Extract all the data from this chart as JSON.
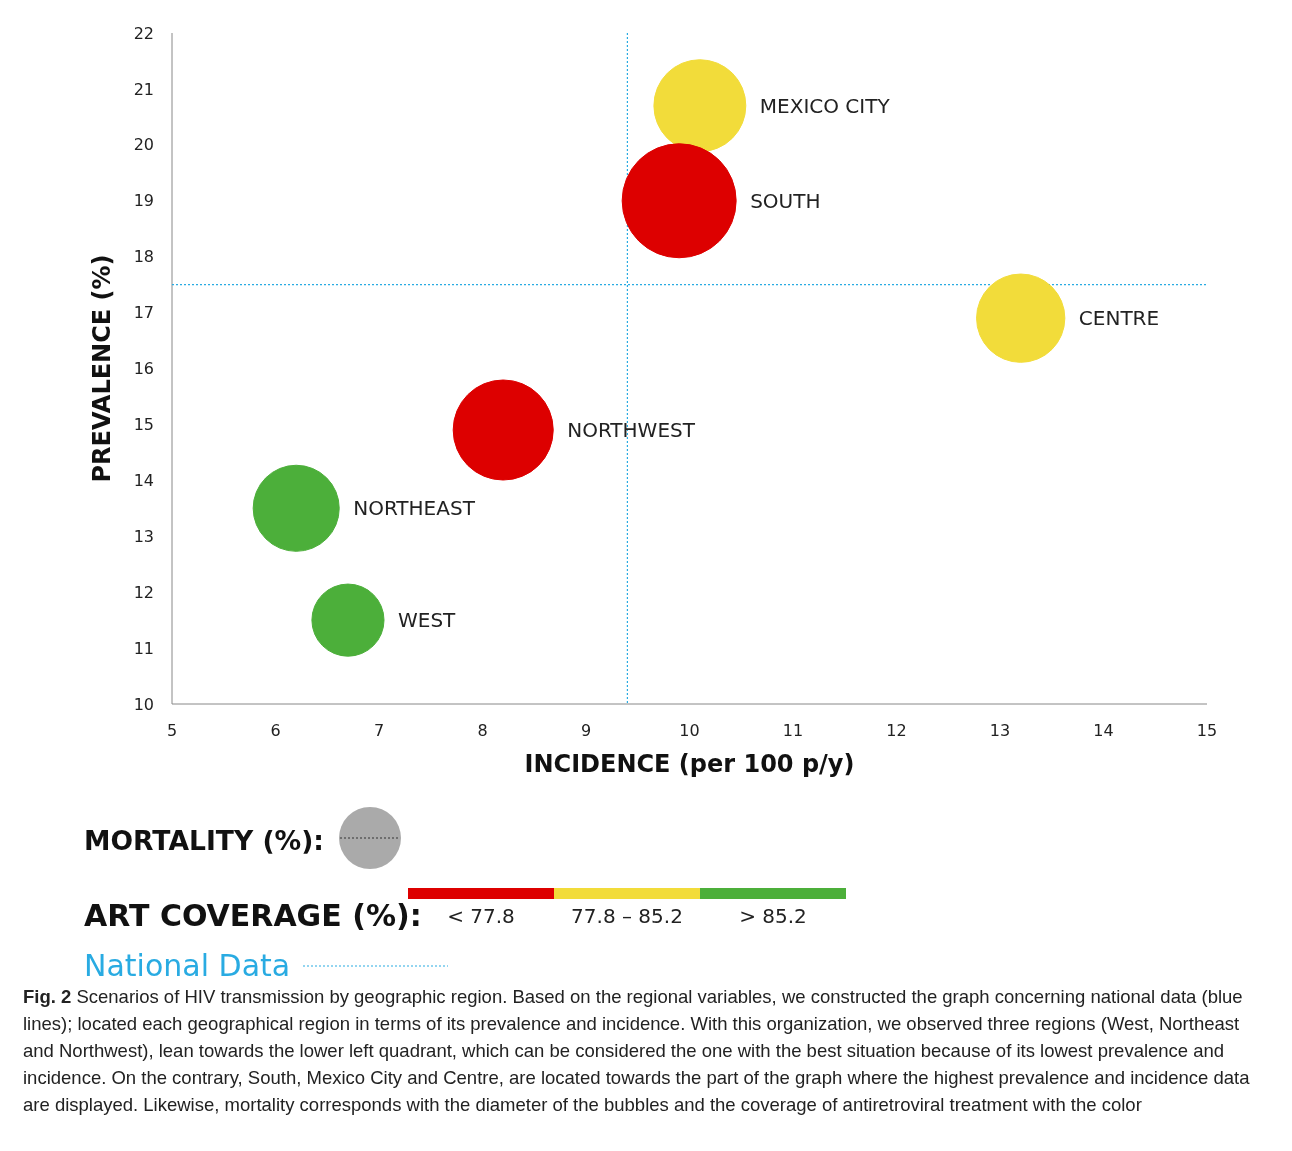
{
  "chart_data": {
    "type": "bubble",
    "title": "Fig. 2",
    "subtitle": "Scenarios of HIV transmission by geographic region. Based on the regional variables, we constructed the graph concerning national data (blue lines); located each geographical region in terms of its prevalence and incidence. With this organization, we observed three regions (West, Northeast and Northwest), lean towards the lower left quadrant, which can be considered the one with the best situation because of its lowest prevalence and incidence. On the contrary, South, Mexico City and Centre, are located towards the part of the graph where the highest prevalence and incidence data are displayed. Likewise, mortality corresponds with the diameter of the bubbles and the coverage of antiretroviral treatment with the color",
    "xlabel": "INCIDENCE (per 100 p/y)",
    "ylabel": "PREVALENCE (%)",
    "xlim": [
      5,
      15
    ],
    "xticks": [
      5,
      6,
      7,
      8,
      9,
      10,
      11,
      12,
      13,
      14,
      15
    ],
    "ylim": [
      10,
      22
    ],
    "yticks": [
      10,
      11,
      12,
      13,
      14,
      15,
      16,
      17,
      18,
      19,
      20,
      21,
      22
    ],
    "grid": false,
    "marker": "circle",
    "series": [
      {
        "name": "MEXICO CITY",
        "color": "#f2dc3a",
        "x": [
          10.1
        ],
        "values": [
          20.7
        ],
        "sizes": [
          0.65
        ]
      },
      {
        "name": "SOUTH",
        "color": "#dd0000",
        "x": [
          9.9
        ],
        "values": [
          19.0
        ],
        "sizes": [
          1
        ]
      },
      {
        "name": "CENTRE",
        "color": "#f2dc3a",
        "x": [
          13.2
        ],
        "values": [
          16.9
        ],
        "sizes": [
          0.6
        ]
      },
      {
        "name": "NORTHWEST",
        "color": "#dd0000",
        "x": [
          8.2
        ],
        "values": [
          14.9
        ],
        "sizes": [
          0.77
        ]
      },
      {
        "name": "NORTHEAST",
        "color": "#4caf3a",
        "x": [
          6.2
        ],
        "values": [
          13.5
        ],
        "sizes": [
          0.57
        ]
      },
      {
        "name": "WEST",
        "color": "#4caf3a",
        "x": [
          6.7
        ],
        "values": [
          11.5
        ],
        "sizes": [
          0.4
        ]
      }
    ],
    "ref_lines": [
      {
        "axis": "x",
        "value": 9.4,
        "label": "National Data",
        "color": "#29abe2",
        "line_style": "dotted"
      },
      {
        "axis": "y",
        "value": 17.5,
        "label": null,
        "color": "#29abe2",
        "line_style": "dotted"
      }
    ],
    "annotations": [
      "MORTALITY (%):",
      "ART COVERAGE (%):",
      "< 77.8",
      "77.8 – 85.2",
      "> 85.2"
    ]
  }
}
